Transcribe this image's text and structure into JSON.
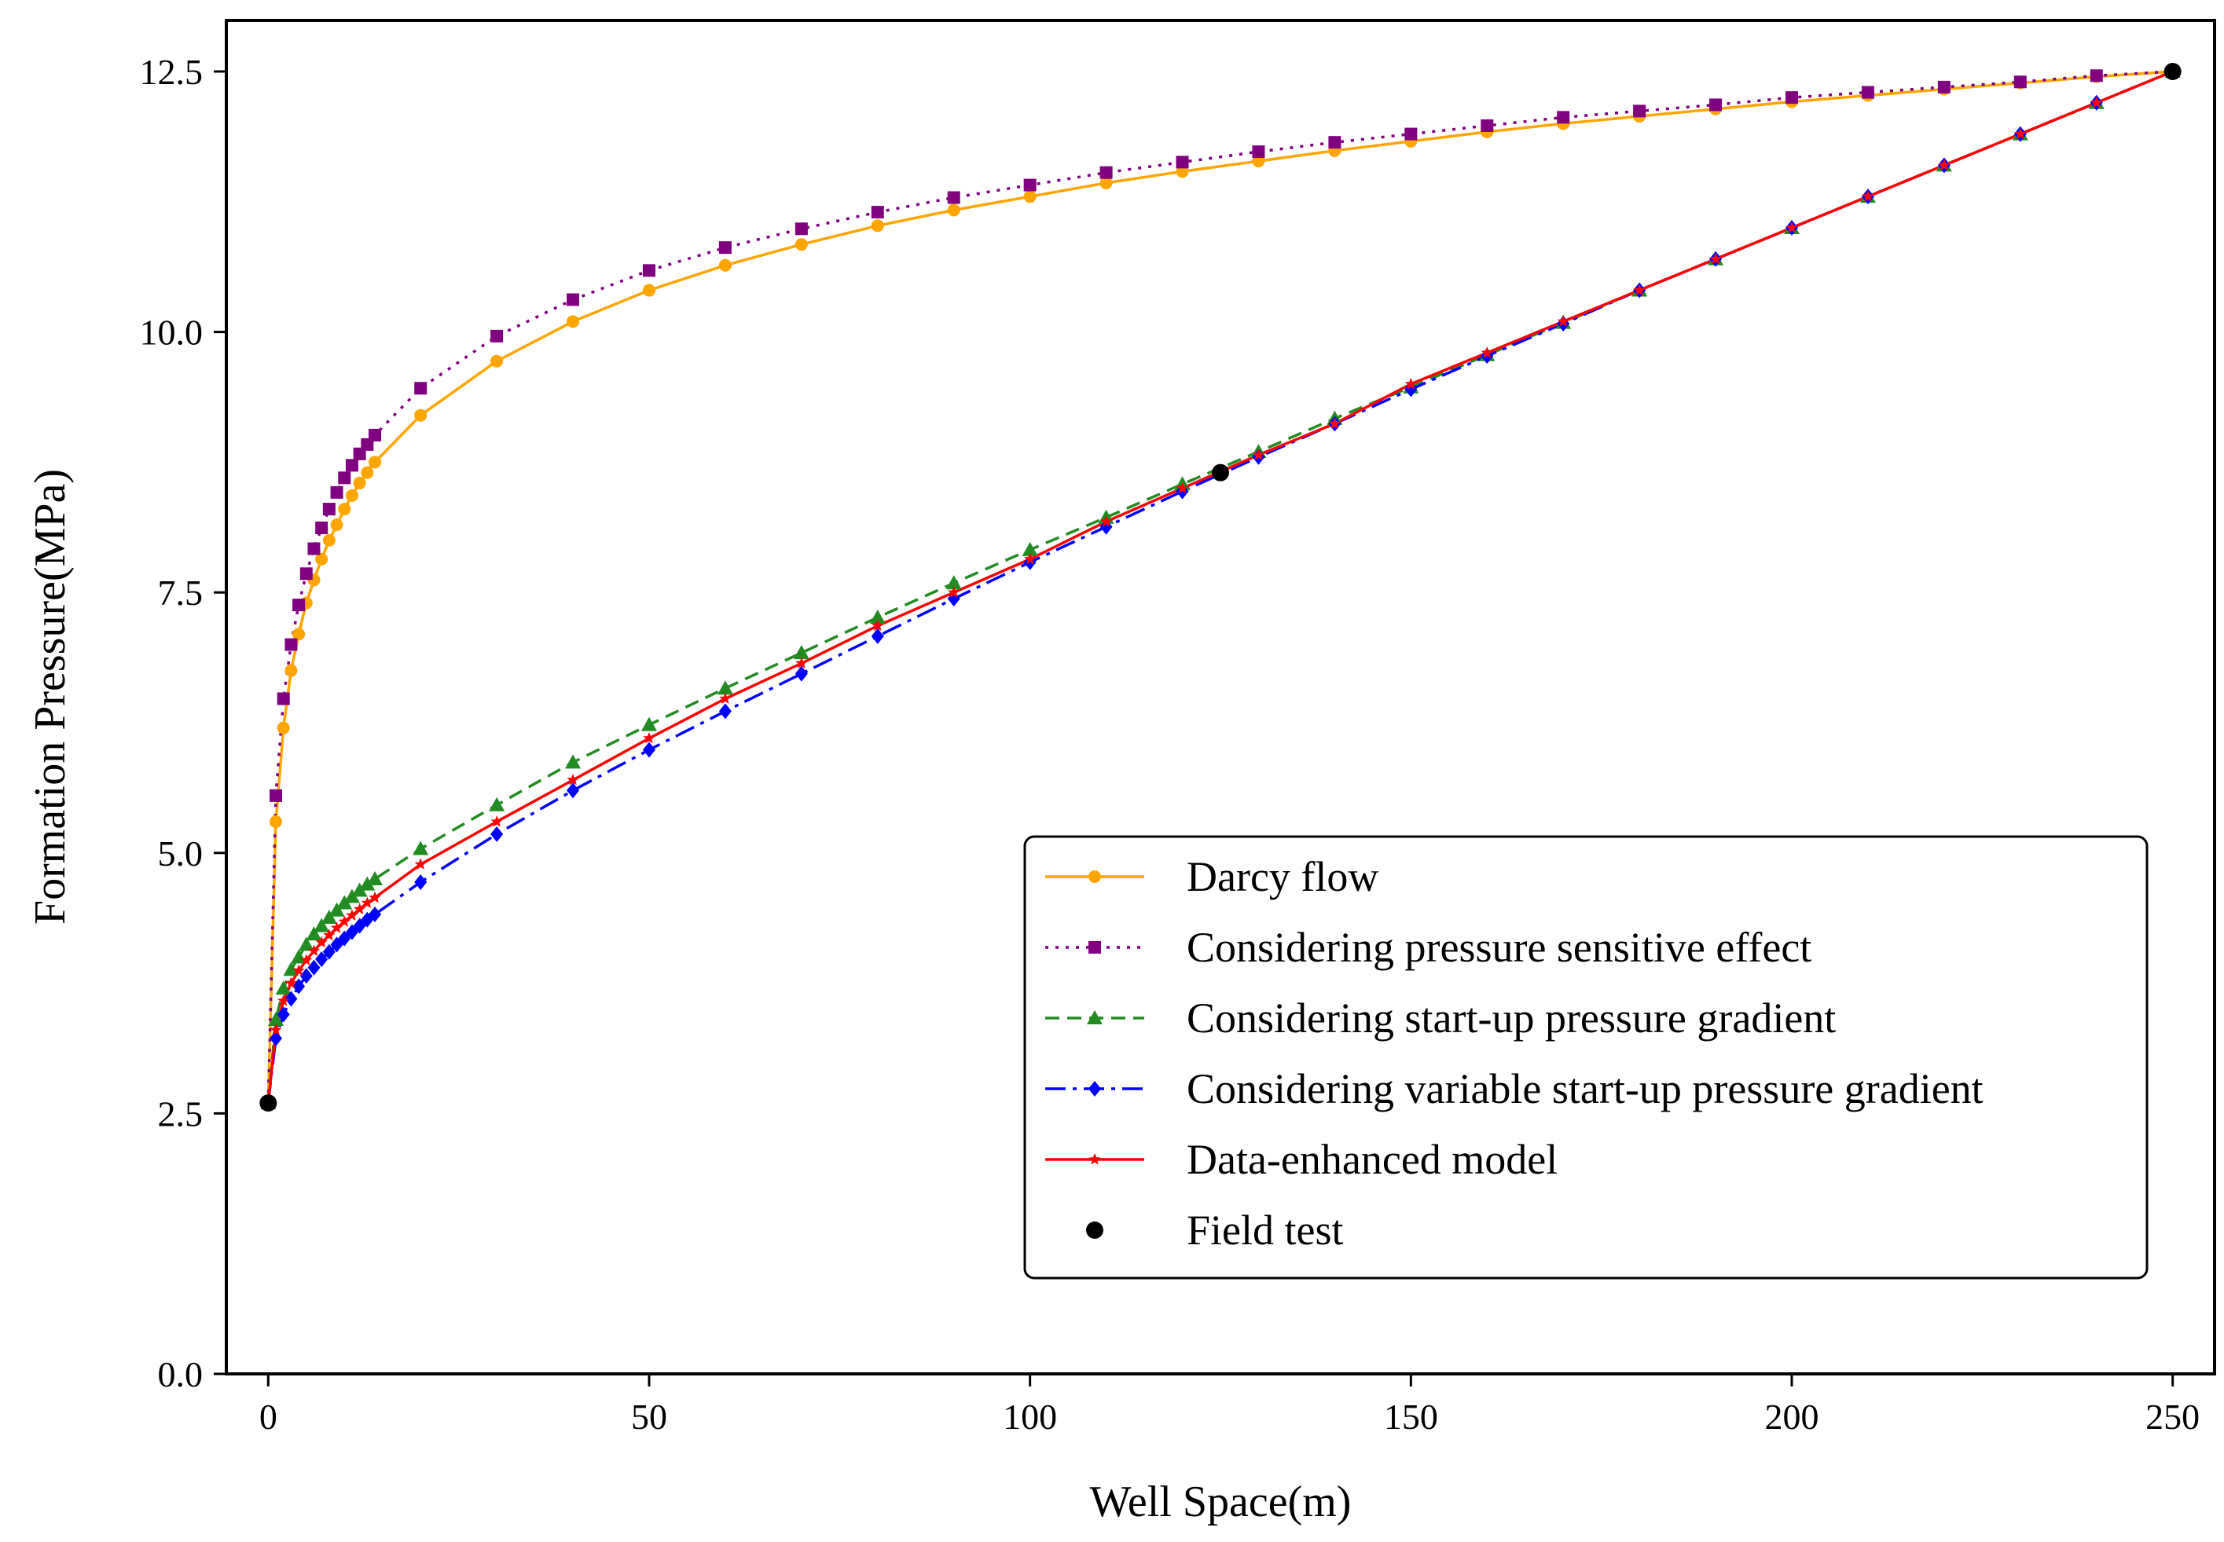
{
  "chart_data": {
    "type": "line",
    "title": "",
    "xlabel": "Well Space(m)",
    "ylabel": "Formation Pressure(MPa)",
    "xlim": [
      -5.5,
      255.5
    ],
    "ylim": [
      0,
      12.5
    ],
    "xticks": [
      0,
      50,
      100,
      150,
      200,
      250
    ],
    "yticks": [
      0.0,
      2.5,
      5.0,
      7.5,
      10.0,
      12.5
    ],
    "xtick_labels": [
      "0",
      "50",
      "100",
      "150",
      "200",
      "250"
    ],
    "ytick_labels": [
      "0.0",
      "2.5",
      "5.0",
      "7.5",
      "10.0",
      "12.5"
    ],
    "grid": false,
    "legend_position": "lower-right",
    "series": [
      {
        "name": "Darcy flow",
        "color": "#FFA500",
        "linestyle": "solid",
        "marker": "circle",
        "x": [
          0,
          1,
          2,
          3,
          4,
          5,
          6,
          7,
          8,
          9,
          10,
          11,
          12,
          13,
          14,
          20,
          30,
          40,
          50,
          60,
          70,
          80,
          90,
          100,
          110,
          120,
          130,
          140,
          150,
          160,
          170,
          180,
          190,
          200,
          210,
          220,
          230,
          240,
          250
        ],
        "y": [
          2.6,
          5.3,
          6.2,
          6.75,
          7.1,
          7.4,
          7.62,
          7.82,
          8.0,
          8.15,
          8.3,
          8.43,
          8.55,
          8.65,
          8.75,
          9.2,
          9.72,
          10.1,
          10.4,
          10.64,
          10.84,
          11.02,
          11.17,
          11.3,
          11.43,
          11.54,
          11.64,
          11.74,
          11.83,
          11.92,
          12.0,
          12.07,
          12.14,
          12.21,
          12.27,
          12.33,
          12.39,
          12.45,
          12.5
        ]
      },
      {
        "name": "Considering pressure sensitive effect",
        "color": "#800080",
        "linestyle": "dotted",
        "marker": "square",
        "x": [
          0,
          1,
          2,
          3,
          4,
          5,
          6,
          7,
          8,
          9,
          10,
          11,
          12,
          13,
          14,
          20,
          30,
          40,
          50,
          60,
          70,
          80,
          90,
          100,
          110,
          120,
          130,
          140,
          150,
          160,
          170,
          180,
          190,
          200,
          210,
          220,
          230,
          240,
          250
        ],
        "y": [
          2.6,
          5.55,
          6.48,
          7.0,
          7.38,
          7.68,
          7.92,
          8.12,
          8.3,
          8.46,
          8.6,
          8.72,
          8.83,
          8.92,
          9.01,
          9.46,
          9.96,
          10.31,
          10.59,
          10.81,
          10.99,
          11.15,
          11.29,
          11.41,
          11.53,
          11.63,
          11.73,
          11.82,
          11.9,
          11.98,
          12.06,
          12.12,
          12.18,
          12.25,
          12.3,
          12.35,
          12.4,
          12.46,
          12.5
        ]
      },
      {
        "name": "Considering start-up pressure gradient",
        "color": "#228B22",
        "linestyle": "dashed",
        "marker": "triangle",
        "x": [
          0,
          1,
          2,
          3,
          4,
          5,
          6,
          7,
          8,
          9,
          10,
          11,
          12,
          13,
          14,
          20,
          30,
          40,
          50,
          60,
          70,
          80,
          90,
          100,
          110,
          120,
          130,
          140,
          150,
          160,
          170,
          180,
          190,
          200,
          210,
          220,
          230,
          240,
          250
        ],
        "y": [
          2.6,
          3.4,
          3.7,
          3.88,
          4.0,
          4.12,
          4.22,
          4.3,
          4.38,
          4.45,
          4.52,
          4.58,
          4.64,
          4.7,
          4.75,
          5.04,
          5.46,
          5.87,
          6.23,
          6.58,
          6.92,
          7.26,
          7.59,
          7.91,
          8.22,
          8.54,
          8.85,
          9.17,
          9.47,
          9.78,
          10.09,
          10.4,
          10.7,
          11.0,
          11.3,
          11.6,
          11.9,
          12.2,
          12.5
        ]
      },
      {
        "name": "Considering variable start-up pressure gradient",
        "color": "#0000FF",
        "linestyle": "dashdot",
        "marker": "diamond",
        "x": [
          0,
          1,
          2,
          3,
          4,
          5,
          6,
          7,
          8,
          9,
          10,
          11,
          12,
          13,
          14,
          20,
          30,
          40,
          50,
          60,
          70,
          80,
          90,
          100,
          110,
          120,
          130,
          140,
          150,
          160,
          170,
          180,
          190,
          200,
          210,
          220,
          230,
          240,
          250
        ],
        "y": [
          2.6,
          3.22,
          3.45,
          3.6,
          3.72,
          3.82,
          3.9,
          3.98,
          4.05,
          4.12,
          4.18,
          4.24,
          4.3,
          4.36,
          4.41,
          4.72,
          5.18,
          5.6,
          5.99,
          6.36,
          6.72,
          7.08,
          7.44,
          7.79,
          8.13,
          8.47,
          8.8,
          9.12,
          9.45,
          9.77,
          10.08,
          10.4,
          10.7,
          11.0,
          11.3,
          11.6,
          11.9,
          12.2,
          12.5
        ]
      },
      {
        "name": "Data-enhanced model",
        "color": "#FF0000",
        "linestyle": "solid",
        "marker": "small-star",
        "x": [
          0,
          1,
          2,
          3,
          4,
          5,
          6,
          7,
          8,
          9,
          10,
          11,
          12,
          13,
          14,
          20,
          30,
          40,
          50,
          60,
          70,
          80,
          90,
          100,
          110,
          120,
          130,
          140,
          150,
          160,
          170,
          180,
          190,
          200,
          210,
          220,
          230,
          240,
          250
        ],
        "y": [
          2.6,
          3.3,
          3.58,
          3.75,
          3.87,
          3.97,
          4.06,
          4.14,
          4.21,
          4.28,
          4.34,
          4.4,
          4.46,
          4.52,
          4.57,
          4.89,
          5.3,
          5.7,
          6.1,
          6.48,
          6.82,
          7.18,
          7.5,
          7.82,
          8.18,
          8.5,
          8.82,
          9.12,
          9.5,
          9.8,
          10.1,
          10.4,
          10.7,
          11.0,
          11.3,
          11.6,
          11.9,
          12.2,
          12.5
        ]
      },
      {
        "name": "Field test",
        "color": "#000000",
        "linestyle": "none",
        "marker": "filled-circle",
        "x": [
          0,
          125,
          250
        ],
        "y": [
          2.6,
          8.65,
          12.5
        ]
      }
    ]
  }
}
